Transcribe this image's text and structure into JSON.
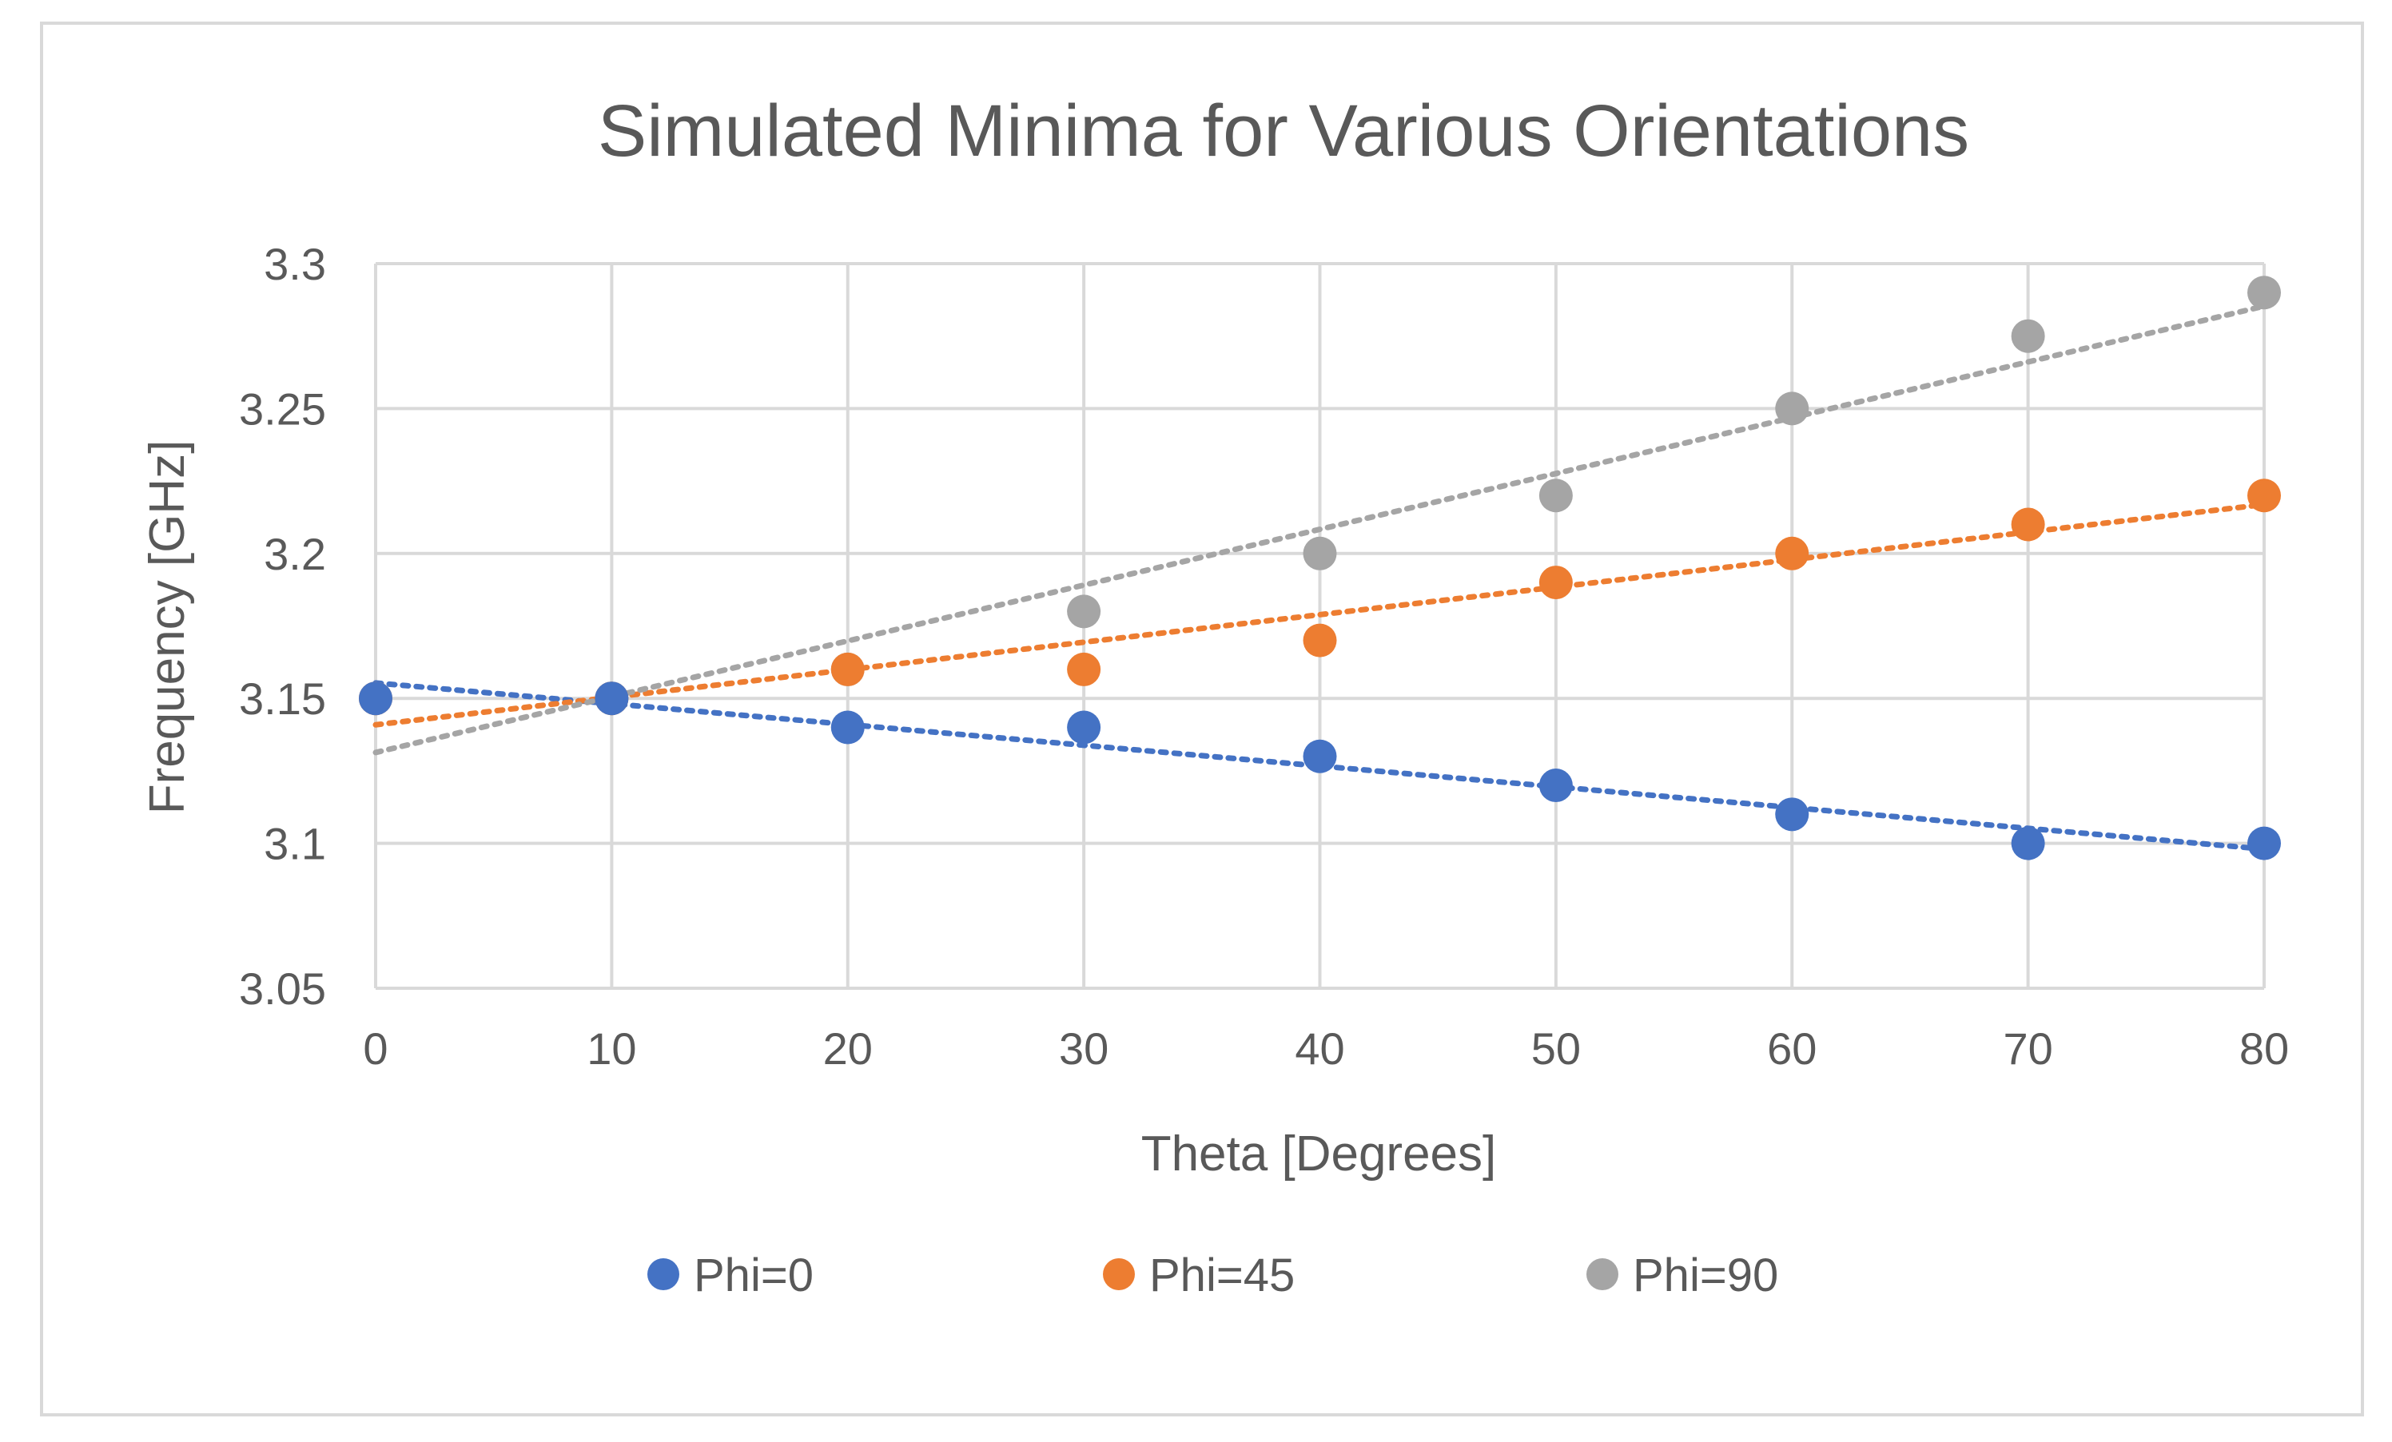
{
  "chart_data": {
    "type": "scatter",
    "title": "Simulated Minima for Various Orientations",
    "xlabel": "Theta [Degrees]",
    "ylabel": "Frequency [GHz]",
    "xlim": [
      0,
      80
    ],
    "ylim": [
      3.05,
      3.3
    ],
    "x_ticks": [
      0,
      10,
      20,
      30,
      40,
      50,
      60,
      70,
      80
    ],
    "y_ticks": [
      3.05,
      3.1,
      3.15,
      3.2,
      3.25,
      3.3
    ],
    "x_tick_labels": [
      "0",
      "10",
      "20",
      "30",
      "40",
      "50",
      "60",
      "70",
      "80"
    ],
    "y_tick_labels": [
      "3.05",
      "3.1",
      "3.15",
      "3.2",
      "3.25",
      "3.3"
    ],
    "grid": true,
    "legend_position": "bottom",
    "trendlines": "linear, dotted",
    "x": [
      0,
      10,
      20,
      30,
      40,
      50,
      60,
      70,
      80
    ],
    "series": [
      {
        "name": "Phi=0",
        "color": "#4472c4",
        "values": [
          3.15,
          3.15,
          3.14,
          3.14,
          3.13,
          3.12,
          3.11,
          3.1,
          3.1
        ]
      },
      {
        "name": "Phi=45",
        "color": "#ed7d31",
        "values": [
          3.15,
          3.15,
          3.16,
          3.16,
          3.17,
          3.19,
          3.2,
          3.21,
          3.22
        ]
      },
      {
        "name": "Phi=90",
        "color": "#a5a5a5",
        "values": [
          3.15,
          3.15,
          3.16,
          3.18,
          3.2,
          3.22,
          3.25,
          3.275,
          3.29
        ]
      }
    ]
  }
}
